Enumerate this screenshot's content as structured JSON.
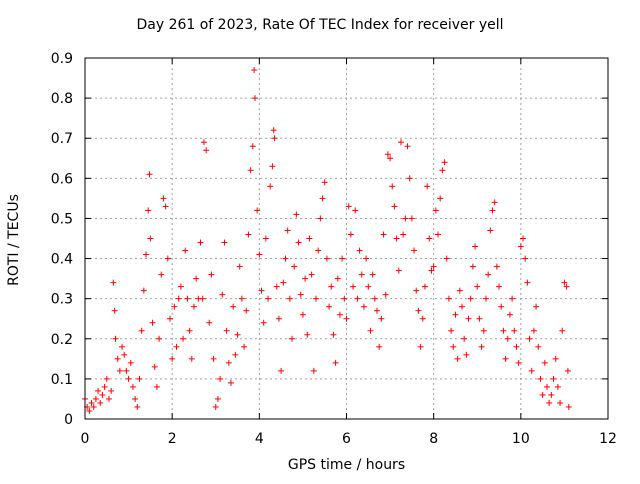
{
  "chart_data": {
    "type": "scatter",
    "title": "Day 261 of 2023, Rate Of TEC Index for receiver yell",
    "xlabel": "GPS time / hours",
    "ylabel": "ROTI / TECUs",
    "xlim": [
      0,
      12
    ],
    "ylim": [
      0,
      0.9
    ],
    "xticks": [
      "0",
      "2",
      "4",
      "6",
      "8",
      "10",
      "12"
    ],
    "yticks": [
      "0",
      "0.1",
      "0.2",
      "0.3",
      "0.4",
      "0.5",
      "0.6",
      "0.7",
      "0.8",
      "0.9"
    ],
    "grid": true,
    "marker": "+",
    "color": "#ff0000",
    "series": [
      {
        "points": [
          [
            0.0,
            0.05
          ],
          [
            0.05,
            0.03
          ],
          [
            0.1,
            0.02
          ],
          [
            0.15,
            0.04
          ],
          [
            0.2,
            0.03
          ],
          [
            0.25,
            0.05
          ],
          [
            0.3,
            0.07
          ],
          [
            0.35,
            0.04
          ],
          [
            0.4,
            0.06
          ],
          [
            0.45,
            0.08
          ],
          [
            0.5,
            0.1
          ],
          [
            0.55,
            0.05
          ],
          [
            0.6,
            0.07
          ],
          [
            0.65,
            0.34
          ],
          [
            0.68,
            0.27
          ],
          [
            0.7,
            0.2
          ],
          [
            0.75,
            0.15
          ],
          [
            0.8,
            0.12
          ],
          [
            0.85,
            0.18
          ],
          [
            0.9,
            0.16
          ],
          [
            0.95,
            0.12
          ],
          [
            1.0,
            0.1
          ],
          [
            1.05,
            0.14
          ],
          [
            1.1,
            0.08
          ],
          [
            1.15,
            0.05
          ],
          [
            1.2,
            0.03
          ],
          [
            1.25,
            0.1
          ],
          [
            1.3,
            0.22
          ],
          [
            1.35,
            0.32
          ],
          [
            1.4,
            0.41
          ],
          [
            1.45,
            0.52
          ],
          [
            1.48,
            0.61
          ],
          [
            1.5,
            0.45
          ],
          [
            1.55,
            0.24
          ],
          [
            1.6,
            0.13
          ],
          [
            1.65,
            0.08
          ],
          [
            1.7,
            0.2
          ],
          [
            1.75,
            0.36
          ],
          [
            1.8,
            0.55
          ],
          [
            1.85,
            0.53
          ],
          [
            1.9,
            0.4
          ],
          [
            1.95,
            0.25
          ],
          [
            2.0,
            0.15
          ],
          [
            2.05,
            0.28
          ],
          [
            2.1,
            0.18
          ],
          [
            2.15,
            0.3
          ],
          [
            2.2,
            0.33
          ],
          [
            2.25,
            0.2
          ],
          [
            2.3,
            0.42
          ],
          [
            2.35,
            0.3
          ],
          [
            2.4,
            0.22
          ],
          [
            2.45,
            0.15
          ],
          [
            2.5,
            0.28
          ],
          [
            2.55,
            0.35
          ],
          [
            2.6,
            0.3
          ],
          [
            2.65,
            0.44
          ],
          [
            2.7,
            0.3
          ],
          [
            2.73,
            0.69
          ],
          [
            2.78,
            0.67
          ],
          [
            2.85,
            0.24
          ],
          [
            2.9,
            0.36
          ],
          [
            2.95,
            0.15
          ],
          [
            3.0,
            0.03
          ],
          [
            3.05,
            0.05
          ],
          [
            3.1,
            0.1
          ],
          [
            3.15,
            0.31
          ],
          [
            3.2,
            0.44
          ],
          [
            3.25,
            0.22
          ],
          [
            3.3,
            0.14
          ],
          [
            3.35,
            0.09
          ],
          [
            3.4,
            0.28
          ],
          [
            3.45,
            0.16
          ],
          [
            3.5,
            0.21
          ],
          [
            3.55,
            0.38
          ],
          [
            3.6,
            0.3
          ],
          [
            3.65,
            0.18
          ],
          [
            3.7,
            0.27
          ],
          [
            3.75,
            0.46
          ],
          [
            3.8,
            0.62
          ],
          [
            3.85,
            0.68
          ],
          [
            3.88,
            0.87
          ],
          [
            3.9,
            0.8
          ],
          [
            3.95,
            0.52
          ],
          [
            4.0,
            0.41
          ],
          [
            4.05,
            0.32
          ],
          [
            4.1,
            0.24
          ],
          [
            4.15,
            0.45
          ],
          [
            4.2,
            0.3
          ],
          [
            4.25,
            0.58
          ],
          [
            4.3,
            0.63
          ],
          [
            4.33,
            0.72
          ],
          [
            4.35,
            0.7
          ],
          [
            4.4,
            0.33
          ],
          [
            4.45,
            0.25
          ],
          [
            4.5,
            0.12
          ],
          [
            4.55,
            0.34
          ],
          [
            4.6,
            0.4
          ],
          [
            4.65,
            0.47
          ],
          [
            4.7,
            0.3
          ],
          [
            4.75,
            0.2
          ],
          [
            4.8,
            0.38
          ],
          [
            4.85,
            0.51
          ],
          [
            4.9,
            0.44
          ],
          [
            4.95,
            0.31
          ],
          [
            5.0,
            0.26
          ],
          [
            5.05,
            0.35
          ],
          [
            5.1,
            0.21
          ],
          [
            5.15,
            0.45
          ],
          [
            5.2,
            0.36
          ],
          [
            5.25,
            0.12
          ],
          [
            5.3,
            0.3
          ],
          [
            5.35,
            0.42
          ],
          [
            5.4,
            0.5
          ],
          [
            5.45,
            0.55
          ],
          [
            5.5,
            0.59
          ],
          [
            5.55,
            0.4
          ],
          [
            5.6,
            0.28
          ],
          [
            5.65,
            0.33
          ],
          [
            5.7,
            0.21
          ],
          [
            5.75,
            0.14
          ],
          [
            5.8,
            0.35
          ],
          [
            5.85,
            0.26
          ],
          [
            5.9,
            0.4
          ],
          [
            5.95,
            0.3
          ],
          [
            6.0,
            0.25
          ],
          [
            6.05,
            0.53
          ],
          [
            6.1,
            0.46
          ],
          [
            6.15,
            0.33
          ],
          [
            6.2,
            0.52
          ],
          [
            6.25,
            0.3
          ],
          [
            6.3,
            0.42
          ],
          [
            6.35,
            0.36
          ],
          [
            6.4,
            0.28
          ],
          [
            6.45,
            0.4
          ],
          [
            6.5,
            0.33
          ],
          [
            6.55,
            0.22
          ],
          [
            6.6,
            0.36
          ],
          [
            6.65,
            0.3
          ],
          [
            6.7,
            0.27
          ],
          [
            6.75,
            0.18
          ],
          [
            6.8,
            0.25
          ],
          [
            6.85,
            0.46
          ],
          [
            6.9,
            0.31
          ],
          [
            6.95,
            0.66
          ],
          [
            7.0,
            0.65
          ],
          [
            7.05,
            0.58
          ],
          [
            7.1,
            0.53
          ],
          [
            7.15,
            0.45
          ],
          [
            7.2,
            0.37
          ],
          [
            7.25,
            0.69
          ],
          [
            7.3,
            0.46
          ],
          [
            7.35,
            0.5
          ],
          [
            7.4,
            0.68
          ],
          [
            7.45,
            0.6
          ],
          [
            7.5,
            0.5
          ],
          [
            7.55,
            0.42
          ],
          [
            7.6,
            0.32
          ],
          [
            7.65,
            0.27
          ],
          [
            7.7,
            0.18
          ],
          [
            7.75,
            0.25
          ],
          [
            7.8,
            0.33
          ],
          [
            7.85,
            0.58
          ],
          [
            7.9,
            0.45
          ],
          [
            7.95,
            0.37
          ],
          [
            8.0,
            0.38
          ],
          [
            8.05,
            0.52
          ],
          [
            8.1,
            0.46
          ],
          [
            8.15,
            0.55
          ],
          [
            8.2,
            0.62
          ],
          [
            8.25,
            0.64
          ],
          [
            8.3,
            0.4
          ],
          [
            8.35,
            0.3
          ],
          [
            8.4,
            0.22
          ],
          [
            8.45,
            0.18
          ],
          [
            8.5,
            0.26
          ],
          [
            8.55,
            0.15
          ],
          [
            8.6,
            0.32
          ],
          [
            8.65,
            0.28
          ],
          [
            8.7,
            0.2
          ],
          [
            8.75,
            0.16
          ],
          [
            8.8,
            0.25
          ],
          [
            8.85,
            0.3
          ],
          [
            8.9,
            0.38
          ],
          [
            8.95,
            0.43
          ],
          [
            9.0,
            0.33
          ],
          [
            9.05,
            0.25
          ],
          [
            9.1,
            0.18
          ],
          [
            9.15,
            0.22
          ],
          [
            9.2,
            0.3
          ],
          [
            9.25,
            0.36
          ],
          [
            9.3,
            0.47
          ],
          [
            9.35,
            0.52
          ],
          [
            9.4,
            0.54
          ],
          [
            9.45,
            0.38
          ],
          [
            9.5,
            0.33
          ],
          [
            9.55,
            0.28
          ],
          [
            9.6,
            0.22
          ],
          [
            9.65,
            0.15
          ],
          [
            9.7,
            0.2
          ],
          [
            9.75,
            0.26
          ],
          [
            9.8,
            0.3
          ],
          [
            9.85,
            0.22
          ],
          [
            9.9,
            0.18
          ],
          [
            9.95,
            0.14
          ],
          [
            10.0,
            0.43
          ],
          [
            10.05,
            0.45
          ],
          [
            10.1,
            0.4
          ],
          [
            10.15,
            0.34
          ],
          [
            10.2,
            0.2
          ],
          [
            10.25,
            0.12
          ],
          [
            10.3,
            0.22
          ],
          [
            10.35,
            0.28
          ],
          [
            10.4,
            0.18
          ],
          [
            10.45,
            0.1
          ],
          [
            10.5,
            0.06
          ],
          [
            10.55,
            0.14
          ],
          [
            10.6,
            0.08
          ],
          [
            10.65,
            0.04
          ],
          [
            10.7,
            0.06
          ],
          [
            10.75,
            0.1
          ],
          [
            10.8,
            0.15
          ],
          [
            10.85,
            0.08
          ],
          [
            10.9,
            0.04
          ],
          [
            10.95,
            0.22
          ],
          [
            11.0,
            0.34
          ],
          [
            11.05,
            0.33
          ],
          [
            11.08,
            0.12
          ],
          [
            11.1,
            0.03
          ]
        ]
      }
    ]
  }
}
